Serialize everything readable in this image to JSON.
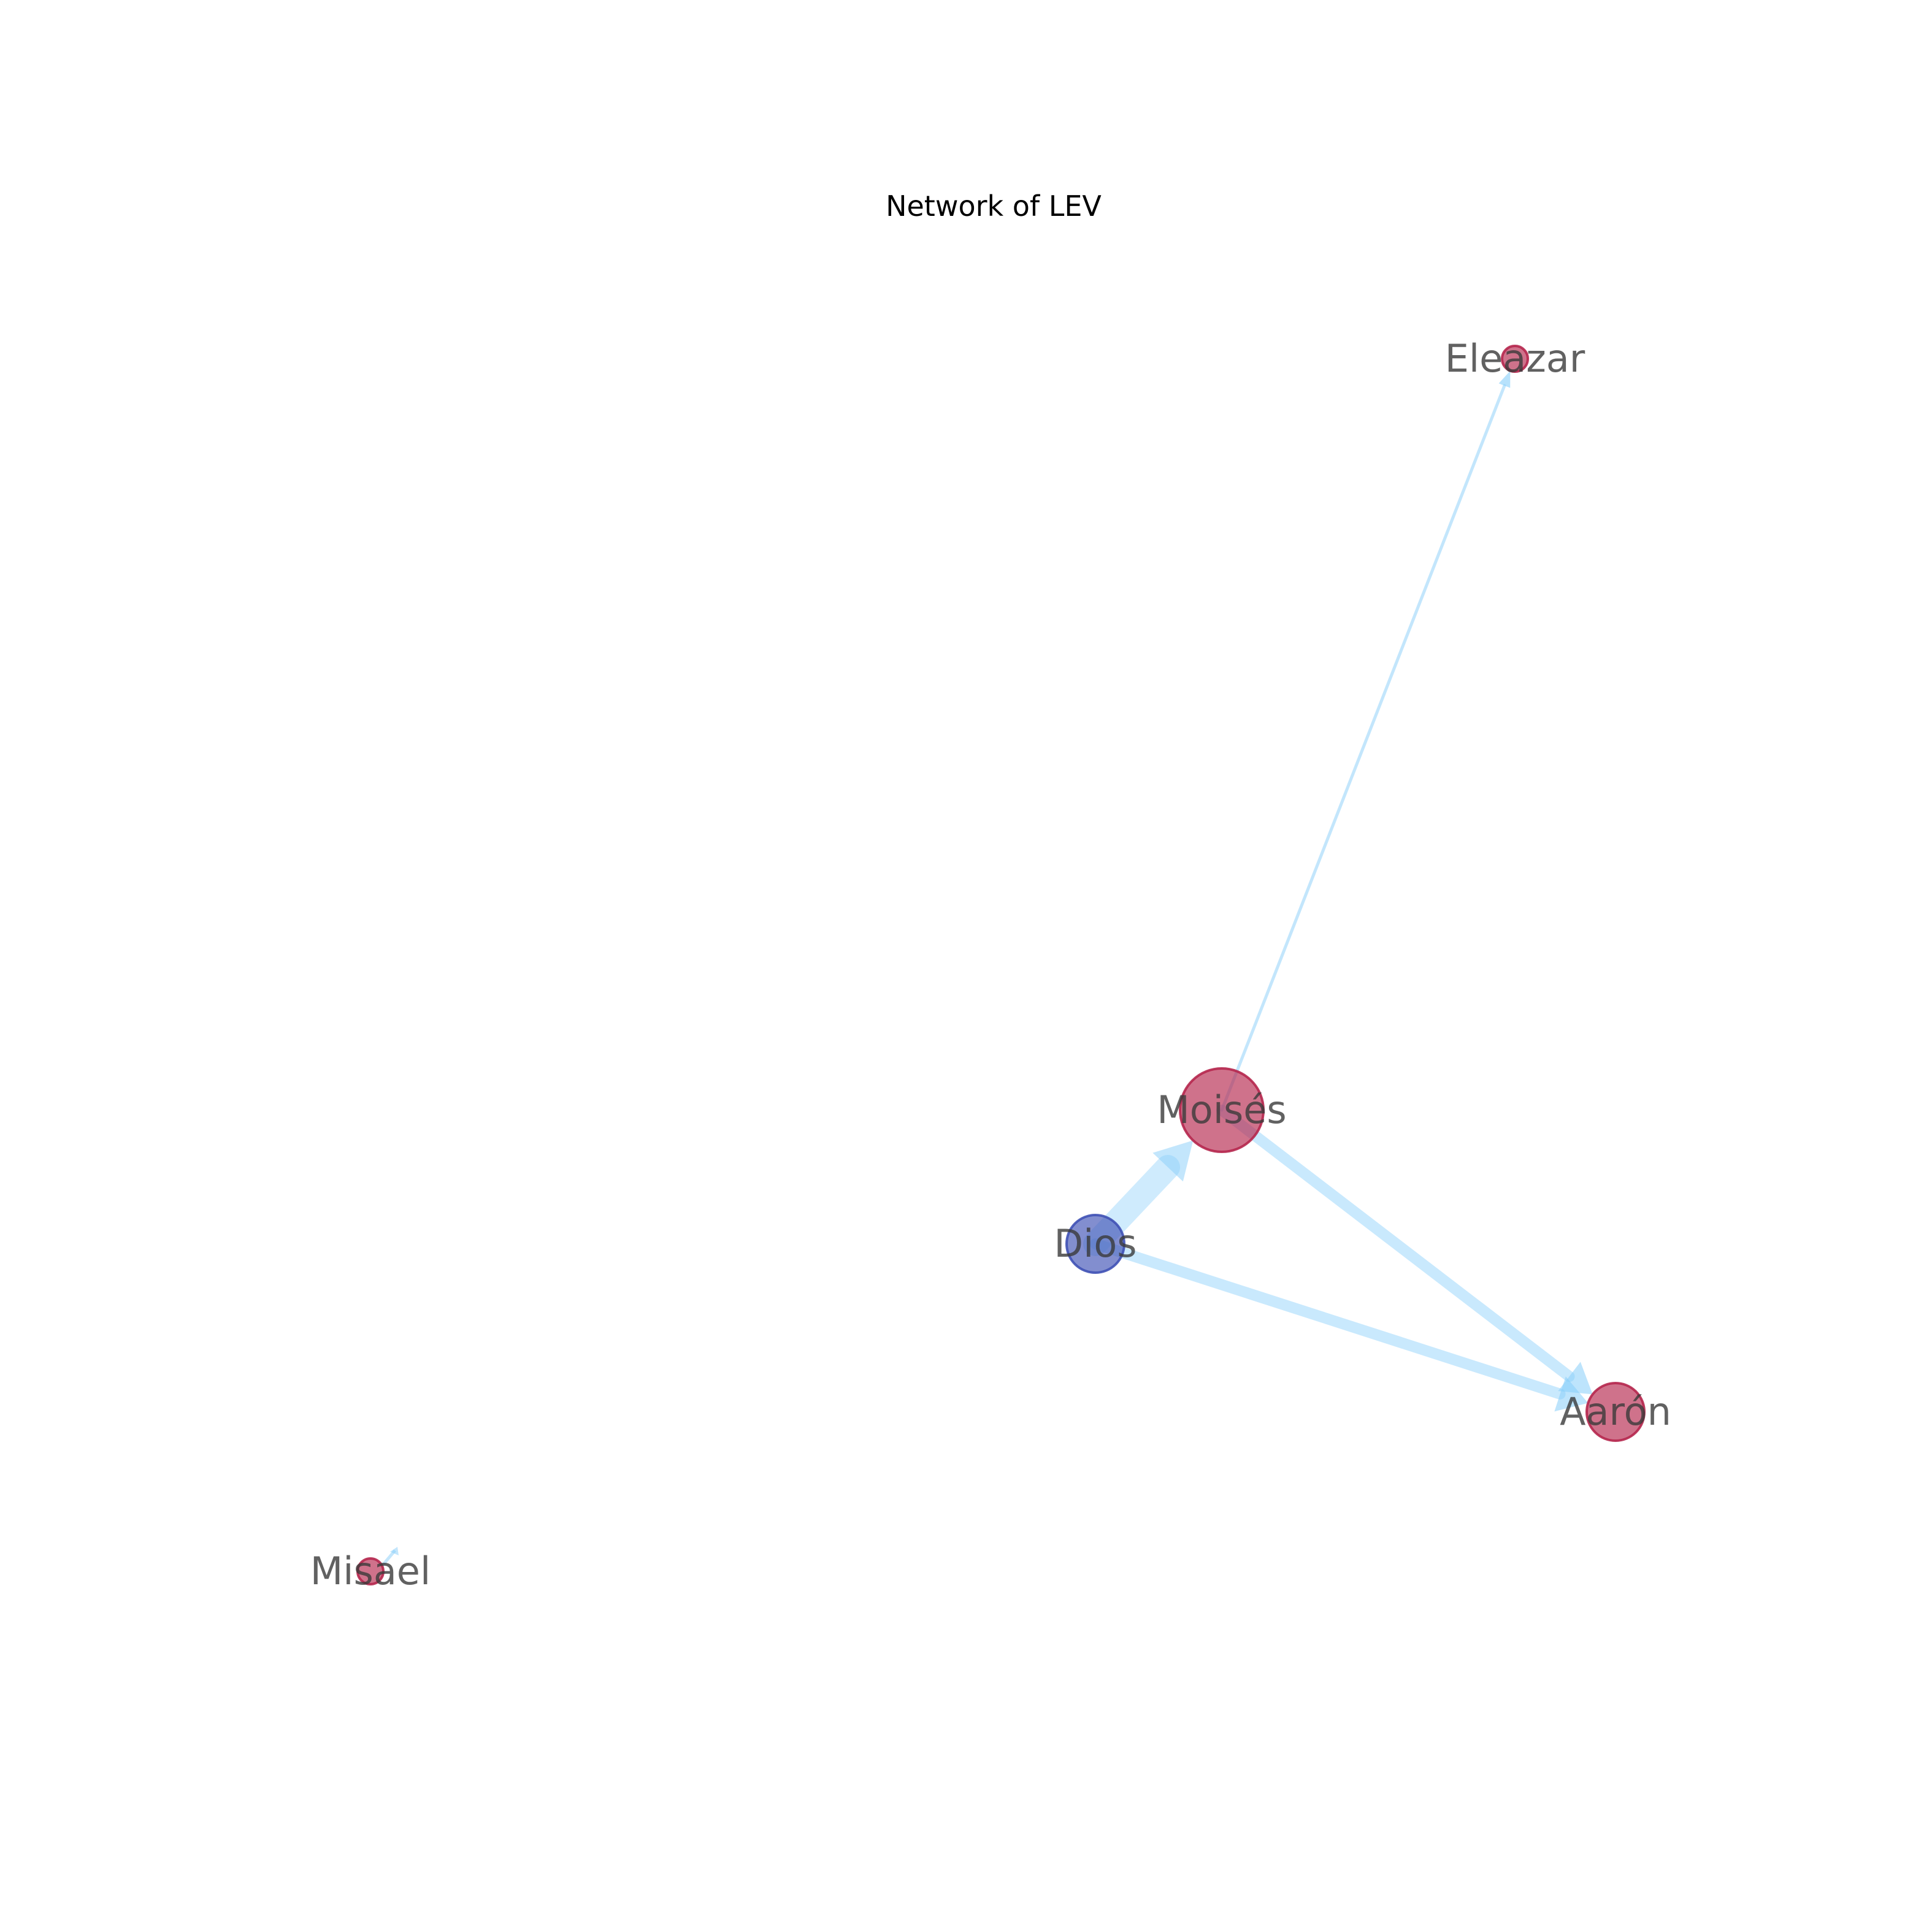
{
  "title": "Network of LEV",
  "colors": {
    "edge": "#87cefa",
    "person_node": "#b5264d",
    "deity_node": "#3f51b5",
    "label": "#3a3a3a"
  },
  "nodes": [
    {
      "id": "Moisés",
      "label": "Moisés",
      "group": "person",
      "size": "largest"
    },
    {
      "id": "Dios",
      "label": "Dios",
      "group": "deity",
      "size": "medium"
    },
    {
      "id": "Aarón",
      "label": "Aarón",
      "group": "person",
      "size": "medium"
    },
    {
      "id": "Eleazar",
      "label": "Eleazar",
      "group": "person",
      "size": "small"
    },
    {
      "id": "Misael",
      "label": "Misael",
      "group": "person",
      "size": "small"
    }
  ],
  "edges": [
    {
      "source": "Moisés",
      "target": "Eleazar",
      "weight": "thin"
    },
    {
      "source": "Moisés",
      "target": "Aarón",
      "weight": "medium"
    },
    {
      "source": "Dios",
      "target": "Moisés",
      "weight": "thick"
    },
    {
      "source": "Dios",
      "target": "Aarón",
      "weight": "medium"
    },
    {
      "source": "Misael",
      "target": "Misael",
      "weight": "thin"
    }
  ]
}
